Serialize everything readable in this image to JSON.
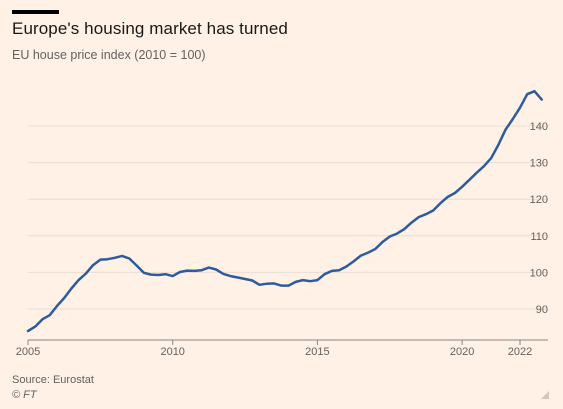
{
  "header": {
    "title": "Europe's housing market has turned",
    "subtitle": "EU house price index (2010 = 100)"
  },
  "footer": {
    "source": "Source: Eurostat",
    "credit": "© FT"
  },
  "colors": {
    "background": "#fff1e5",
    "line": "#2e5b9e",
    "grid": "#e9ddd3",
    "axis": "#8d857e",
    "text": "#66605c"
  },
  "chart_data": {
    "type": "line",
    "title": "Europe's housing market has turned",
    "subtitle": "EU house price index (2010 = 100)",
    "xlabel": "",
    "ylabel": "",
    "xlim": [
      2005,
      2022.25
    ],
    "ylim": [
      83,
      151
    ],
    "x_ticks": [
      2005,
      2010,
      2015,
      2020,
      2022
    ],
    "y_ticks": [
      90,
      100,
      110,
      120,
      130,
      140
    ],
    "y_axis_position": "right",
    "grid": "horizontal",
    "series": [
      {
        "values": [
          [
            2005.0,
            84.0
          ],
          [
            2005.25,
            85.2
          ],
          [
            2005.5,
            87.2
          ],
          [
            2005.75,
            88.3
          ],
          [
            2006.0,
            90.8
          ],
          [
            2006.25,
            93.0
          ],
          [
            2006.5,
            95.6
          ],
          [
            2006.75,
            97.9
          ],
          [
            2007.0,
            99.7
          ],
          [
            2007.25,
            102.0
          ],
          [
            2007.5,
            103.5
          ],
          [
            2007.75,
            103.6
          ],
          [
            2008.0,
            104.0
          ],
          [
            2008.25,
            104.5
          ],
          [
            2008.5,
            103.8
          ],
          [
            2008.75,
            101.9
          ],
          [
            2009.0,
            99.9
          ],
          [
            2009.25,
            99.4
          ],
          [
            2009.5,
            99.3
          ],
          [
            2009.75,
            99.5
          ],
          [
            2010.0,
            99.0
          ],
          [
            2010.25,
            100.1
          ],
          [
            2010.5,
            100.5
          ],
          [
            2010.75,
            100.4
          ],
          [
            2011.0,
            100.6
          ],
          [
            2011.25,
            101.3
          ],
          [
            2011.5,
            100.8
          ],
          [
            2011.75,
            99.6
          ],
          [
            2012.0,
            99.0
          ],
          [
            2012.25,
            98.6
          ],
          [
            2012.5,
            98.2
          ],
          [
            2012.75,
            97.8
          ],
          [
            2013.0,
            96.6
          ],
          [
            2013.25,
            96.9
          ],
          [
            2013.5,
            97.0
          ],
          [
            2013.75,
            96.4
          ],
          [
            2014.0,
            96.4
          ],
          [
            2014.25,
            97.4
          ],
          [
            2014.5,
            97.9
          ],
          [
            2014.75,
            97.6
          ],
          [
            2015.0,
            97.9
          ],
          [
            2015.25,
            99.5
          ],
          [
            2015.5,
            100.4
          ],
          [
            2015.75,
            100.6
          ],
          [
            2016.0,
            101.6
          ],
          [
            2016.25,
            103.0
          ],
          [
            2016.5,
            104.6
          ],
          [
            2016.75,
            105.4
          ],
          [
            2017.0,
            106.4
          ],
          [
            2017.25,
            108.3
          ],
          [
            2017.5,
            109.8
          ],
          [
            2017.75,
            110.6
          ],
          [
            2018.0,
            111.8
          ],
          [
            2018.25,
            113.6
          ],
          [
            2018.5,
            115.1
          ],
          [
            2018.75,
            115.9
          ],
          [
            2019.0,
            116.9
          ],
          [
            2019.25,
            118.9
          ],
          [
            2019.5,
            120.6
          ],
          [
            2019.75,
            121.7
          ],
          [
            2020.0,
            123.4
          ],
          [
            2020.25,
            125.3
          ],
          [
            2020.5,
            127.2
          ],
          [
            2020.75,
            129.0
          ],
          [
            2021.0,
            131.2
          ],
          [
            2021.25,
            134.8
          ],
          [
            2021.5,
            139.0
          ],
          [
            2021.75,
            141.9
          ],
          [
            2022.0,
            145.0
          ],
          [
            2022.25,
            148.7
          ],
          [
            2022.5,
            149.5
          ],
          [
            2022.75,
            147.2
          ]
        ]
      }
    ]
  }
}
